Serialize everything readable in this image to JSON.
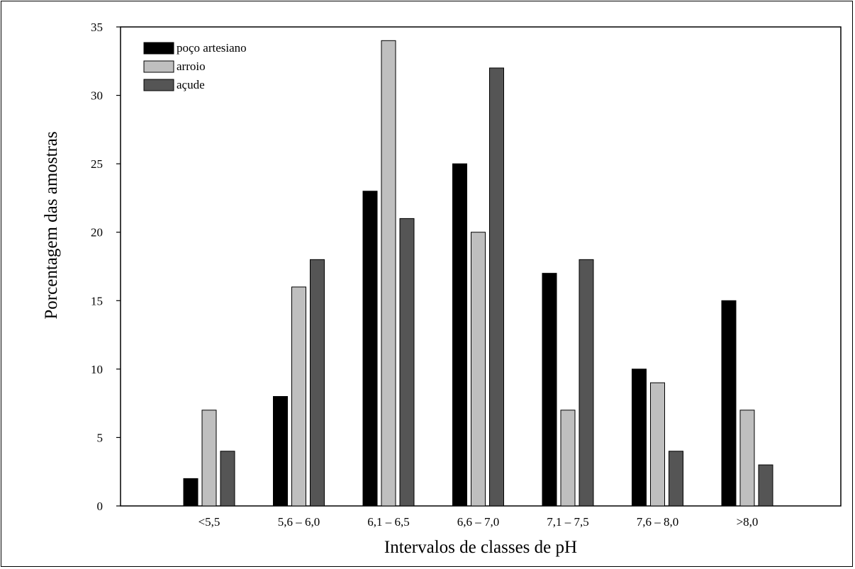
{
  "chart_data": {
    "type": "bar",
    "title": "",
    "xlabel": "Intervalos de classes de pH",
    "ylabel": "Porcentagem das amostras",
    "categories": [
      "<5,5",
      "5,6 – 6,0",
      "6,1 – 6,5",
      "6,6 – 7,0",
      "7,1 – 7,5",
      "7,6 – 8,0",
      ">8,0"
    ],
    "ylim": [
      0,
      35
    ],
    "yticks": [
      0,
      5,
      10,
      15,
      20,
      25,
      30,
      35
    ],
    "grid": false,
    "legend_position": "top-left",
    "series": [
      {
        "name": "poço artesiano",
        "color": "#000000",
        "values": [
          2,
          8,
          23,
          25,
          17,
          10,
          15
        ]
      },
      {
        "name": "arroio",
        "color": "#bfbfbf",
        "values": [
          7,
          16,
          34,
          20,
          7,
          9,
          7
        ]
      },
      {
        "name": "açude",
        "color": "#555555",
        "values": [
          4,
          18,
          21,
          32,
          18,
          4,
          3
        ]
      }
    ]
  }
}
